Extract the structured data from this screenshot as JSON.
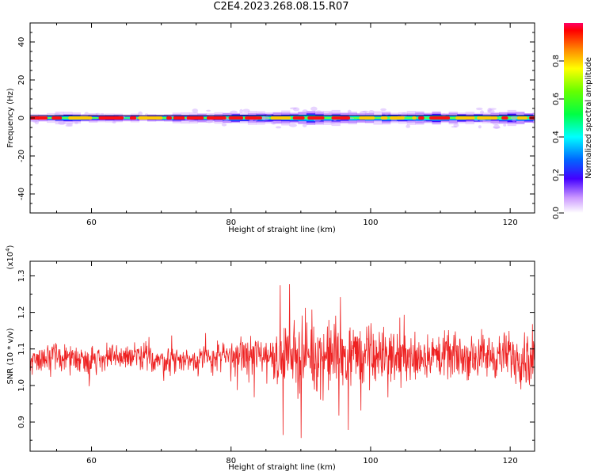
{
  "title": "C2E4.2023.268.08.15.R07",
  "chart_data": [
    {
      "type": "heatmap",
      "xlabel": "Height of straight line (km)",
      "ylabel": "Frequency (Hz)",
      "xlim": [
        51.2,
        123.5
      ],
      "ylim": [
        -50,
        50
      ],
      "xticks": [
        60,
        80,
        100,
        120
      ],
      "yticks": [
        -40,
        -20,
        0,
        20,
        40
      ],
      "colorbar": {
        "label": "Normalized spectral amplitude",
        "range": [
          0.0,
          1.0
        ],
        "ticks": [
          0.0,
          0.2,
          0.4,
          0.6,
          0.8
        ],
        "tick_labels": [
          "0.0",
          "0.2",
          "0.4",
          "0.6",
          "0.8"
        ]
      },
      "band_center_hz": 0,
      "band_halfwidth_hz": [
        [
          52,
          2
        ],
        [
          56,
          3
        ],
        [
          60,
          2
        ],
        [
          64,
          2
        ],
        [
          68,
          2
        ],
        [
          72,
          2.5
        ],
        [
          76,
          2.5
        ],
        [
          80,
          3
        ],
        [
          84,
          3
        ],
        [
          88,
          3.5
        ],
        [
          92,
          4
        ],
        [
          96,
          3
        ],
        [
          100,
          3
        ],
        [
          104,
          3
        ],
        [
          108,
          3.5
        ],
        [
          112,
          3
        ],
        [
          116,
          3
        ],
        [
          120,
          3.5
        ],
        [
          123,
          3
        ]
      ]
    },
    {
      "type": "line",
      "xlabel": "Height of straight line (km)",
      "ylabel": "SNR (10 * v/v)",
      "y_multiplier": "(x10^4)",
      "xlim": [
        51.2,
        123.5
      ],
      "ylim": [
        0.82,
        1.34
      ],
      "xticks": [
        60,
        80,
        100,
        120
      ],
      "yticks": [
        0.9,
        1.0,
        1.1,
        1.2,
        1.3
      ],
      "ytick_labels": [
        "0.9",
        "1.0",
        "1.1",
        "1.2",
        "1.3"
      ],
      "color": "#ee2222",
      "series": [
        {
          "x": [
            51.2,
            55,
            60,
            65,
            70,
            75,
            80,
            84,
            87,
            89,
            90,
            91,
            93,
            95,
            96,
            98,
            100,
            102,
            105,
            108,
            110,
            113,
            116,
            119,
            121,
            123.5
          ],
          "y": [
            1.07,
            1.08,
            1.07,
            1.08,
            1.07,
            1.07,
            1.08,
            1.08,
            1.08,
            1.09,
            1.08,
            1.08,
            1.08,
            1.08,
            1.08,
            1.08,
            1.08,
            1.08,
            1.08,
            1.08,
            1.08,
            1.08,
            1.08,
            1.08,
            1.08,
            1.07
          ],
          "noise_amplitude": [
            0.03,
            0.03,
            0.03,
            0.03,
            0.03,
            0.03,
            0.035,
            0.05,
            0.06,
            0.08,
            0.09,
            0.08,
            0.08,
            0.08,
            0.08,
            0.07,
            0.07,
            0.06,
            0.05,
            0.05,
            0.05,
            0.05,
            0.05,
            0.05,
            0.06,
            0.06
          ]
        }
      ]
    }
  ]
}
